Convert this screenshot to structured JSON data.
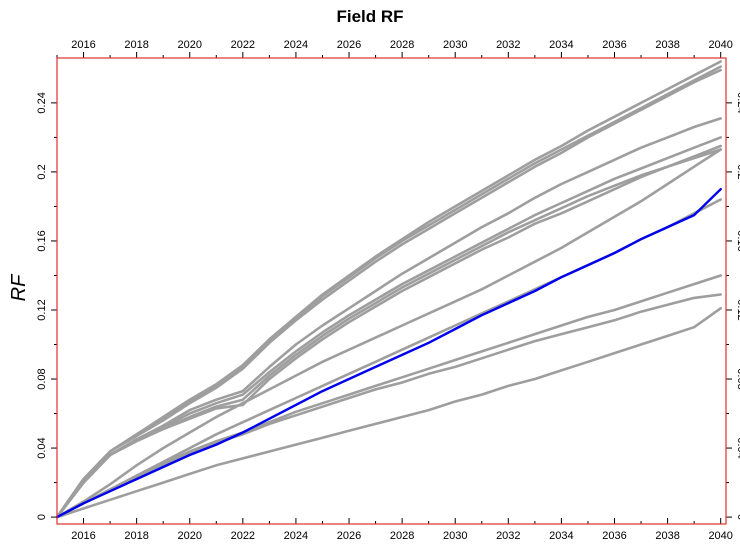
{
  "chart_data": {
    "type": "line",
    "title": "Field RF",
    "ylabel": "RF",
    "xlabel": "",
    "x": [
      2015,
      2016,
      2017,
      2018,
      2019,
      2020,
      2021,
      2022,
      2023,
      2024,
      2025,
      2026,
      2027,
      2028,
      2029,
      2030,
      2031,
      2032,
      2033,
      2034,
      2035,
      2036,
      2037,
      2038,
      2039,
      2040
    ],
    "xlim": [
      2015,
      2040.2
    ],
    "ylim": [
      -0.004,
      0.266
    ],
    "x_ticks": [
      "2016",
      "2018",
      "2020",
      "2022",
      "2024",
      "2026",
      "2028",
      "2030",
      "2032",
      "2034",
      "2036",
      "2038",
      "2040"
    ],
    "y_ticks": [
      "0",
      "0.04",
      "0.08",
      "0.12",
      "0.16",
      "0.2",
      "0.24"
    ],
    "grid": false,
    "legend": "none",
    "colors": {
      "series_default": "#9e9e9e",
      "highlight": "#0000ee",
      "frame": "#e03030"
    },
    "series": [
      {
        "color": "#9e9e9e",
        "values": [
          0,
          0.022,
          0.038,
          0.048,
          0.057,
          0.067,
          0.076,
          0.087,
          0.102,
          0.115,
          0.128,
          0.139,
          0.15,
          0.16,
          0.169,
          0.178,
          0.187,
          0.196,
          0.205,
          0.213,
          0.221,
          0.229,
          0.237,
          0.245,
          0.253,
          0.261
        ]
      },
      {
        "color": "#9e9e9e",
        "values": [
          0,
          0.022,
          0.038,
          0.047,
          0.056,
          0.066,
          0.075,
          0.086,
          0.101,
          0.114,
          0.126,
          0.137,
          0.148,
          0.158,
          0.167,
          0.176,
          0.185,
          0.194,
          0.203,
          0.211,
          0.22,
          0.228,
          0.236,
          0.244,
          0.252,
          0.259
        ]
      },
      {
        "color": "#9e9e9e",
        "values": [
          0,
          0.022,
          0.038,
          0.048,
          0.058,
          0.068,
          0.077,
          0.088,
          0.103,
          0.116,
          0.129,
          0.14,
          0.151,
          0.161,
          0.171,
          0.18,
          0.189,
          0.198,
          0.207,
          0.215,
          0.224,
          0.232,
          0.24,
          0.248,
          0.256,
          0.264
        ]
      },
      {
        "color": "#9e9e9e",
        "values": [
          0,
          0.02,
          0.036,
          0.045,
          0.053,
          0.062,
          0.068,
          0.073,
          0.087,
          0.1,
          0.111,
          0.121,
          0.131,
          0.141,
          0.15,
          0.159,
          0.168,
          0.176,
          0.185,
          0.193,
          0.2,
          0.207,
          0.214,
          0.22,
          0.226,
          0.231
        ]
      },
      {
        "color": "#9e9e9e",
        "values": [
          0,
          0.02,
          0.036,
          0.045,
          0.052,
          0.06,
          0.066,
          0.071,
          0.084,
          0.096,
          0.107,
          0.117,
          0.126,
          0.135,
          0.143,
          0.151,
          0.159,
          0.167,
          0.175,
          0.182,
          0.189,
          0.196,
          0.202,
          0.208,
          0.214,
          0.22
        ]
      },
      {
        "color": "#9e9e9e",
        "values": [
          0,
          0.02,
          0.036,
          0.044,
          0.051,
          0.058,
          0.064,
          0.068,
          0.082,
          0.094,
          0.105,
          0.115,
          0.124,
          0.133,
          0.141,
          0.149,
          0.157,
          0.165,
          0.172,
          0.179,
          0.186,
          0.192,
          0.198,
          0.203,
          0.208,
          0.213
        ]
      },
      {
        "color": "#9e9e9e",
        "values": [
          0,
          0.02,
          0.036,
          0.045,
          0.051,
          0.057,
          0.063,
          0.065,
          0.08,
          0.092,
          0.103,
          0.113,
          0.122,
          0.131,
          0.139,
          0.147,
          0.155,
          0.162,
          0.17,
          0.176,
          0.183,
          0.19,
          0.197,
          0.203,
          0.209,
          0.215
        ]
      },
      {
        "color": "#9e9e9e",
        "values": [
          0,
          0.009,
          0.019,
          0.03,
          0.04,
          0.049,
          0.058,
          0.066,
          0.074,
          0.082,
          0.09,
          0.097,
          0.104,
          0.111,
          0.118,
          0.125,
          0.132,
          0.14,
          0.148,
          0.156,
          0.165,
          0.174,
          0.183,
          0.193,
          0.203,
          0.213
        ]
      },
      {
        "color": "#9e9e9e",
        "values": [
          0,
          0.008,
          0.016,
          0.024,
          0.032,
          0.04,
          0.048,
          0.055,
          0.062,
          0.069,
          0.076,
          0.083,
          0.09,
          0.097,
          0.104,
          0.111,
          0.118,
          0.125,
          0.132,
          0.139,
          0.146,
          0.153,
          0.161,
          0.168,
          0.176,
          0.184
        ]
      },
      {
        "color": "#9e9e9e",
        "values": [
          0,
          0.008,
          0.016,
          0.024,
          0.031,
          0.038,
          0.044,
          0.049,
          0.055,
          0.061,
          0.066,
          0.071,
          0.076,
          0.081,
          0.086,
          0.091,
          0.096,
          0.101,
          0.106,
          0.111,
          0.116,
          0.12,
          0.125,
          0.13,
          0.135,
          0.14
        ]
      },
      {
        "color": "#9e9e9e",
        "values": [
          0,
          0.008,
          0.016,
          0.023,
          0.03,
          0.037,
          0.043,
          0.048,
          0.054,
          0.059,
          0.064,
          0.069,
          0.074,
          0.078,
          0.083,
          0.087,
          0.092,
          0.097,
          0.102,
          0.106,
          0.11,
          0.114,
          0.119,
          0.123,
          0.127,
          0.129
        ]
      },
      {
        "color": "#9e9e9e",
        "values": [
          0,
          0.005,
          0.01,
          0.015,
          0.02,
          0.025,
          0.03,
          0.034,
          0.038,
          0.042,
          0.046,
          0.05,
          0.054,
          0.058,
          0.062,
          0.067,
          0.071,
          0.076,
          0.08,
          0.085,
          0.09,
          0.095,
          0.1,
          0.105,
          0.11,
          0.121
        ]
      },
      {
        "color": "#0000ee",
        "values": [
          0,
          0.008,
          0.015,
          0.022,
          0.029,
          0.036,
          0.042,
          0.049,
          0.057,
          0.065,
          0.073,
          0.08,
          0.087,
          0.094,
          0.101,
          0.109,
          0.117,
          0.124,
          0.131,
          0.139,
          0.146,
          0.153,
          0.161,
          0.168,
          0.175,
          0.19
        ]
      }
    ]
  }
}
